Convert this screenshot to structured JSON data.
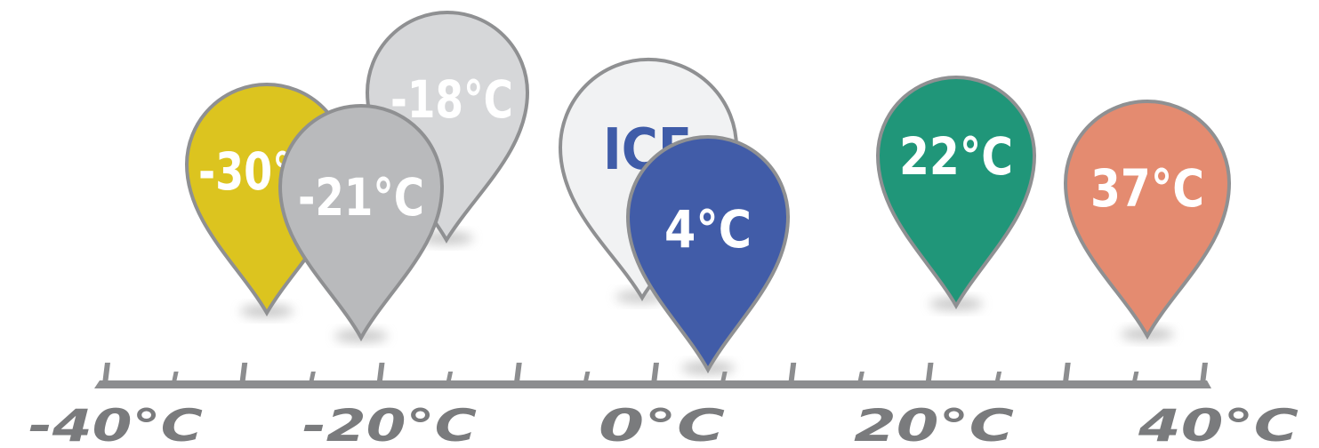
{
  "pins": [
    {
      "id": "pin-minus-30",
      "label": "-30°C",
      "value": -30,
      "fill": "#dcc41f",
      "text_color": "#ffffff"
    },
    {
      "id": "pin-minus-18",
      "label": "-18°C",
      "value": -18,
      "fill": "#d6d7d9",
      "text_color": "#ffffff"
    },
    {
      "id": "pin-minus-21",
      "label": "-21°C",
      "value": -21,
      "fill": "#b9babc",
      "text_color": "#ffffff"
    },
    {
      "id": "pin-ice",
      "label": "ICE",
      "value": 0,
      "fill": "#f1f2f3",
      "text_color": "#3f5ca8"
    },
    {
      "id": "pin-4",
      "label": "4°C",
      "value": 4,
      "fill": "#415ca8",
      "text_color": "#ffffff"
    },
    {
      "id": "pin-22",
      "label": "22°C",
      "value": 22,
      "fill": "#209679",
      "text_color": "#ffffff"
    },
    {
      "id": "pin-37",
      "label": "37°C",
      "value": 37,
      "fill": "#e48b70",
      "text_color": "#ffffff"
    }
  ],
  "scale": {
    "labels": [
      "-40°C",
      "-20°C",
      "0°C",
      "20°C",
      "40°C"
    ],
    "tick_color": "#8c8d8f",
    "label_color": "#7a7b7d"
  }
}
